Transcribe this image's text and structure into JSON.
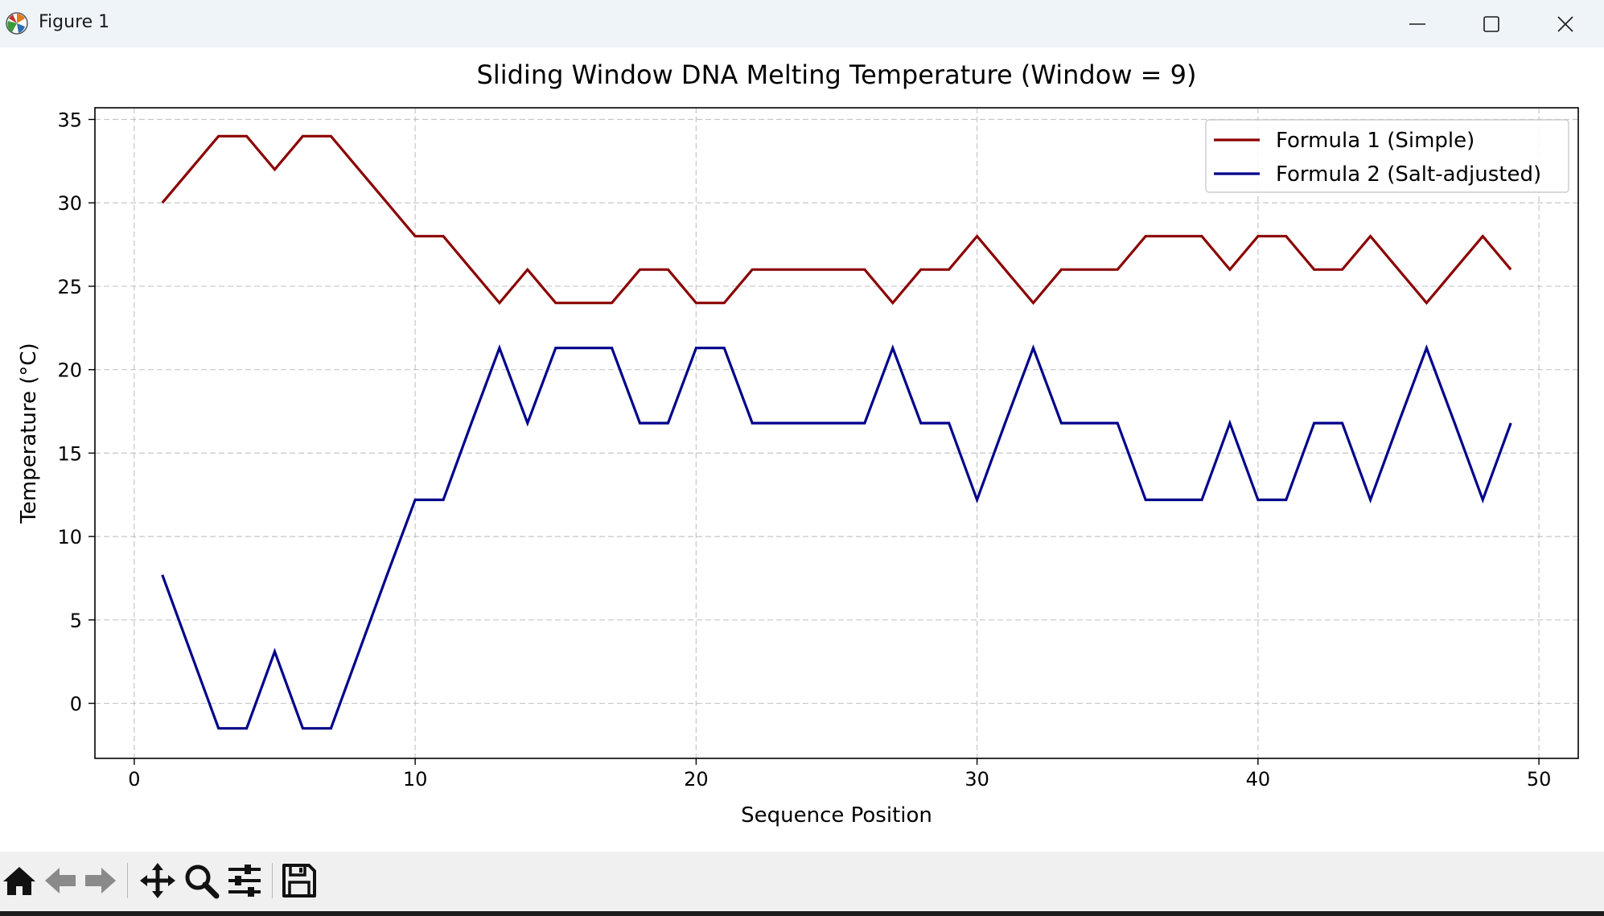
{
  "window": {
    "title": "Figure 1",
    "accent_color": "#eff4f9"
  },
  "icons": {
    "app": "matplotlib-icon",
    "minimize": "minimize-icon",
    "maximize": "maximize-icon",
    "close": "close-icon",
    "toolbar": [
      "home-icon",
      "back-arrow-icon",
      "forward-arrow-icon",
      "pan-icon",
      "zoom-icon",
      "configure-subplots-icon",
      "save-icon"
    ]
  },
  "chart_data": {
    "type": "line",
    "title": "Sliding Window DNA Melting Temperature (Window = 9)",
    "xlabel": "Sequence Position",
    "ylabel": "Temperature (°C)",
    "xlim": [
      -1.4,
      51.4
    ],
    "ylim": [
      -3.3,
      35.7
    ],
    "xticks": [
      0,
      10,
      20,
      30,
      40,
      50
    ],
    "yticks": [
      0,
      5,
      10,
      15,
      20,
      25,
      30,
      35
    ],
    "grid": true,
    "legend_position": "top-right",
    "x": [
      1,
      2,
      3,
      4,
      5,
      6,
      7,
      8,
      9,
      10,
      11,
      12,
      13,
      14,
      15,
      16,
      17,
      18,
      19,
      20,
      21,
      22,
      23,
      24,
      25,
      26,
      27,
      28,
      29,
      30,
      31,
      32,
      33,
      34,
      35,
      36,
      37,
      38,
      39,
      40,
      41,
      42,
      43,
      44,
      45,
      46,
      47,
      48,
      49
    ],
    "series": [
      {
        "name": "Formula 1 (Simple)",
        "color": "#8b0000",
        "values": [
          30,
          32,
          34,
          34,
          32,
          34,
          34,
          32,
          30,
          28,
          28,
          26,
          24,
          26,
          24,
          24,
          24,
          26,
          26,
          24,
          24,
          26,
          26,
          26,
          26,
          26,
          24,
          26,
          26,
          28,
          26,
          24,
          26,
          26,
          26,
          28,
          28,
          28,
          26,
          28,
          28,
          26,
          26,
          28,
          26,
          24,
          26,
          28,
          26
        ]
      },
      {
        "name": "Formula 2 (Salt-adjusted)",
        "color": "#00008b",
        "values": [
          7.7,
          3.1,
          -1.5,
          -1.5,
          3.1,
          -1.5,
          -1.5,
          3.1,
          7.7,
          12.2,
          12.2,
          16.8,
          21.3,
          16.8,
          21.3,
          21.3,
          21.3,
          16.8,
          16.8,
          21.3,
          21.3,
          16.8,
          16.8,
          16.8,
          16.8,
          16.8,
          21.3,
          16.8,
          16.8,
          12.2,
          16.8,
          21.3,
          16.8,
          16.8,
          16.8,
          12.2,
          12.2,
          12.2,
          16.8,
          12.2,
          12.2,
          16.8,
          16.8,
          12.2,
          16.8,
          21.3,
          16.8,
          12.2,
          16.8
        ]
      }
    ]
  }
}
